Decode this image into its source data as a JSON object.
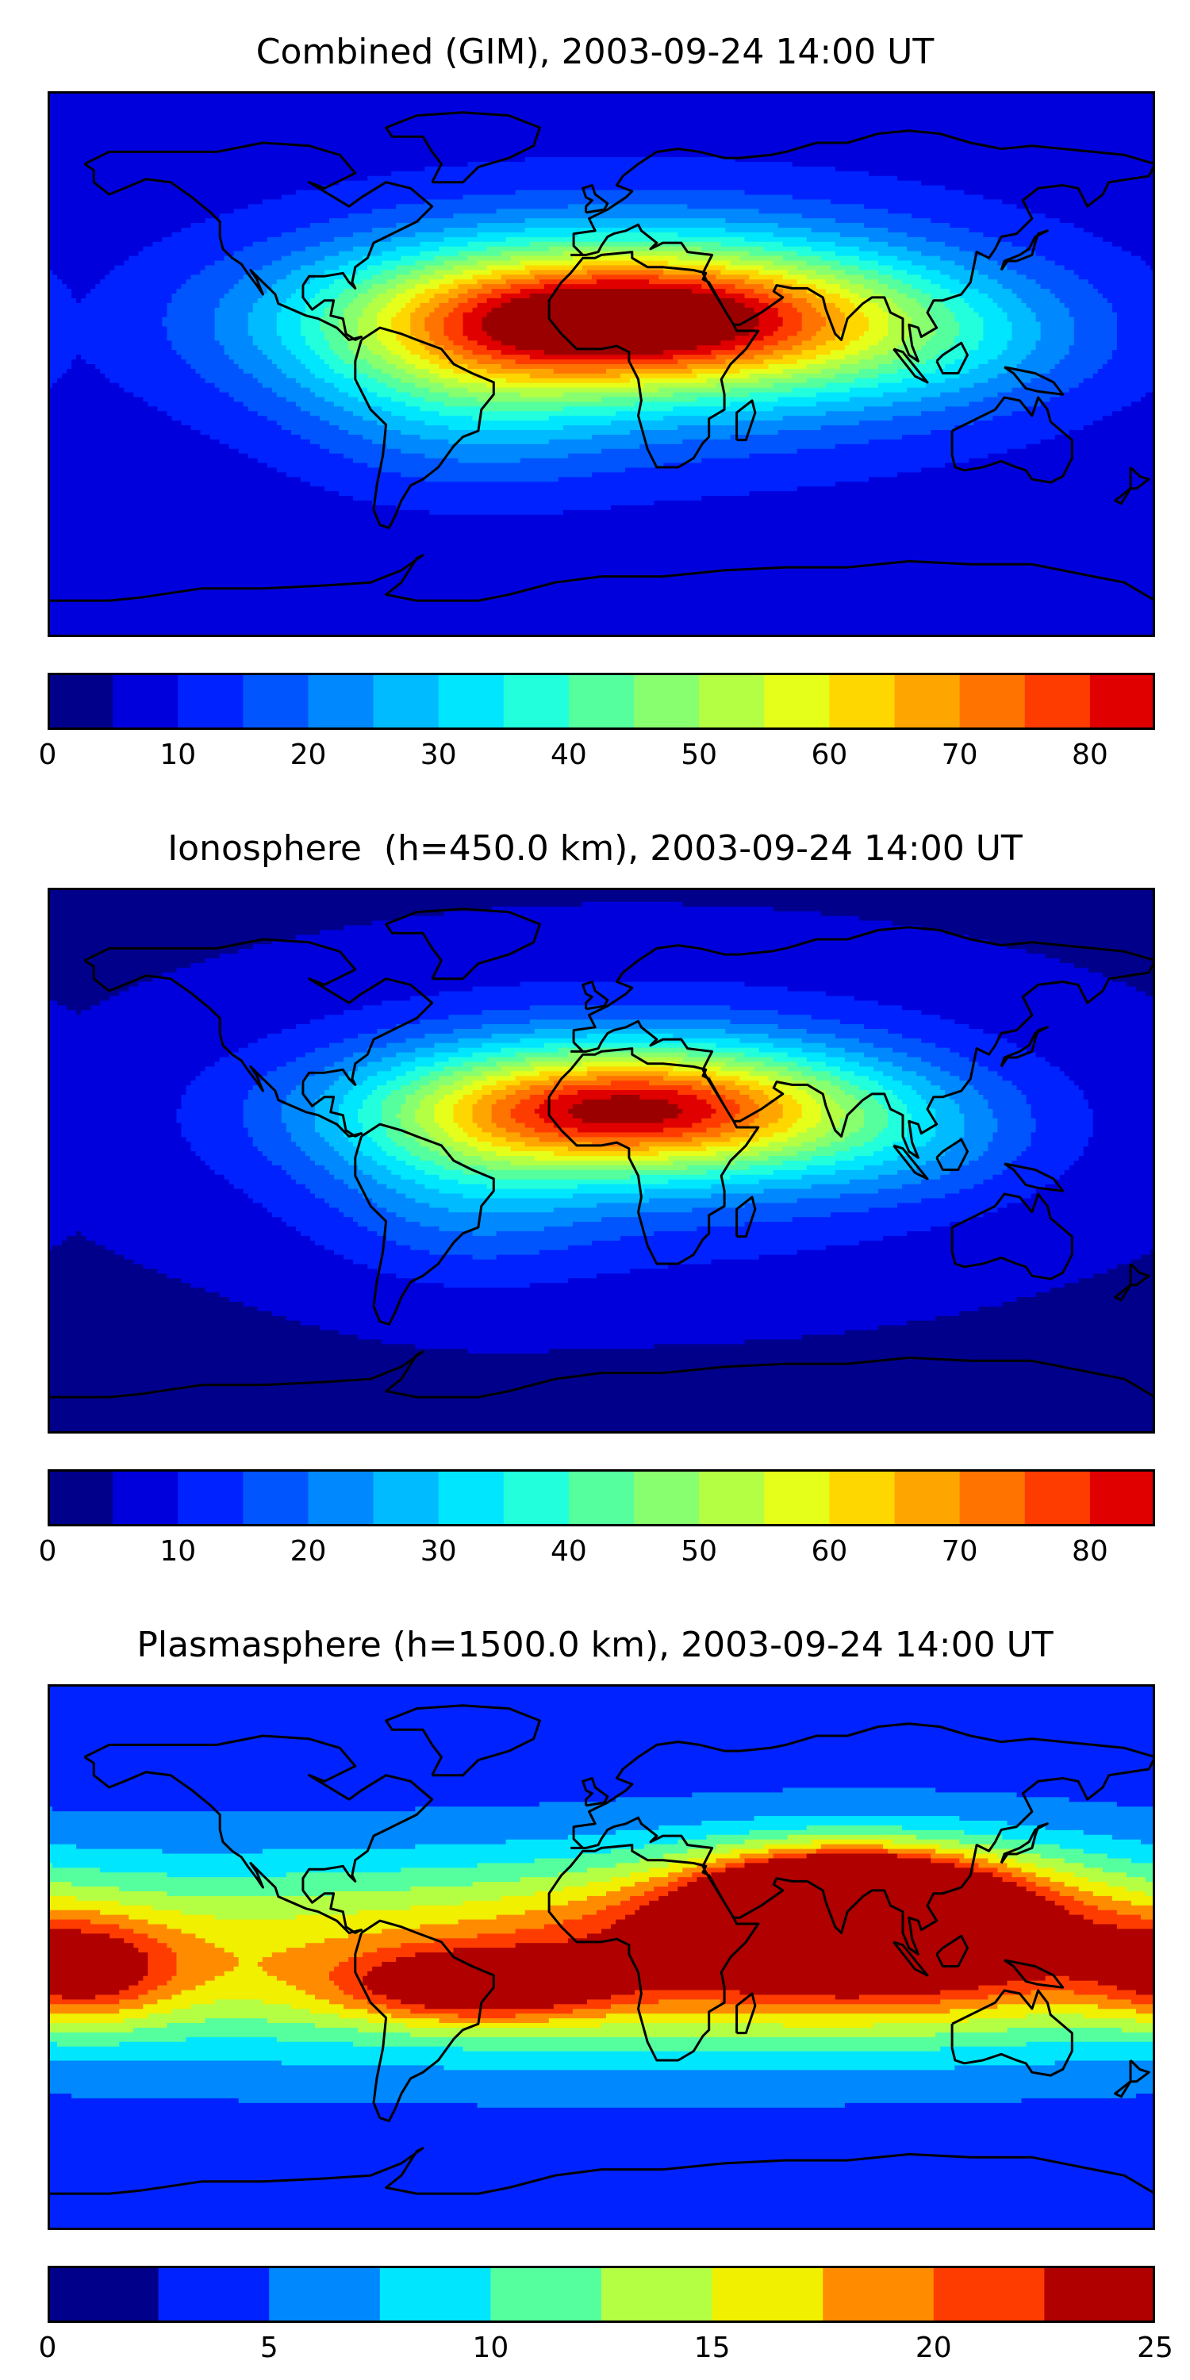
{
  "figure": {
    "kind": "global TEC maps with colorbars"
  },
  "chart_data": [
    {
      "type": "heatmap",
      "title": "Combined (GIM), 2003-09-24 14:00 UT",
      "colorbar": {
        "min": 0,
        "max": 85,
        "step": 5,
        "ticks": [
          0,
          10,
          20,
          30,
          40,
          50,
          60,
          70,
          80
        ],
        "tick_labels": [
          "0",
          "10",
          "20",
          "30",
          "40",
          "50",
          "60",
          "70",
          "80"
        ],
        "colors": [
          "#00008b",
          "#0000dd",
          "#0022ff",
          "#0055ff",
          "#0088ff",
          "#00bbff",
          "#00e6ff",
          "#22ffdd",
          "#55ff9e",
          "#88ff6e",
          "#b4ff44",
          "#e6ff1a",
          "#ffd700",
          "#ffa500",
          "#ff7300",
          "#ff3c00",
          "#e00000",
          "#9b0000"
        ]
      },
      "field": {
        "background": 1,
        "features": [
          {
            "lon": 10,
            "lat": 15,
            "peak": 14.5,
            "sx": 62,
            "sy": 16
          },
          {
            "lon": 10,
            "lat": 12,
            "peak": 4.5,
            "sx": 95,
            "sy": 32
          },
          {
            "lon": -45,
            "lat": -8,
            "peak": 2.5,
            "sx": 34,
            "sy": 22
          },
          {
            "lon": 110,
            "lat": 5,
            "peak": 1.5,
            "sx": 35,
            "sy": 14
          }
        ]
      }
    },
    {
      "type": "heatmap",
      "title": "Ionosphere  (h=450.0 km), 2003-09-24 14:00 UT",
      "colorbar": {
        "min": 0,
        "max": 85,
        "step": 5,
        "ticks": [
          0,
          10,
          20,
          30,
          40,
          50,
          60,
          70,
          80
        ],
        "tick_labels": [
          "0",
          "10",
          "20",
          "30",
          "40",
          "50",
          "60",
          "70",
          "80"
        ],
        "colors": [
          "#00008b",
          "#0000dd",
          "#0022ff",
          "#0055ff",
          "#0088ff",
          "#00bbff",
          "#00e6ff",
          "#22ffdd",
          "#55ff9e",
          "#88ff6e",
          "#b4ff44",
          "#e6ff1a",
          "#ffd700",
          "#ffa500",
          "#ff7300",
          "#ff3c00",
          "#e00000",
          "#9b0000"
        ]
      },
      "field": {
        "background": 0.8,
        "features": [
          {
            "lon": 10,
            "lat": 17,
            "peak": 13.0,
            "sx": 55,
            "sy": 14
          },
          {
            "lon": 10,
            "lat": 12,
            "peak": 3.8,
            "sx": 85,
            "sy": 30
          },
          {
            "lon": -45,
            "lat": -10,
            "peak": 2.0,
            "sx": 30,
            "sy": 20
          },
          {
            "lon": 100,
            "lat": 3,
            "peak": 1.2,
            "sx": 28,
            "sy": 12
          }
        ]
      }
    },
    {
      "type": "heatmap",
      "title": "Plasmasphere (h=1500.0 km), 2003-09-24 14:00 UT",
      "colorbar": {
        "min": 0,
        "max": 25,
        "step": 2.5,
        "ticks": [
          0,
          5,
          10,
          15,
          20,
          25
        ],
        "tick_labels": [
          "0",
          "5",
          "10",
          "15",
          "20",
          "25"
        ],
        "colors": [
          "#00008b",
          "#0022ff",
          "#0088ff",
          "#00e6ff",
          "#55ff9e",
          "#b4ff44",
          "#f0f000",
          "#ff8c00",
          "#ff3c00",
          "#b00000"
        ]
      },
      "field": {
        "background": 1.5,
        "features": [
          {
            "lon": 80,
            "lat": 18,
            "peak": 11.5,
            "sx": 28,
            "sy": 10
          },
          {
            "lon": 90,
            "lat": 10,
            "peak": 6.5,
            "sx": 55,
            "sy": 18
          },
          {
            "lon": -40,
            "lat": -10,
            "peak": 5.0,
            "sx": 30,
            "sy": 8
          },
          {
            "lon": -170,
            "lat": -5,
            "peak": 4.5,
            "sx": 22,
            "sy": 12
          },
          {
            "lon": 0,
            "lat": 0,
            "peak": 6.0,
            "sx": 200,
            "sy": 22
          }
        ]
      }
    }
  ]
}
